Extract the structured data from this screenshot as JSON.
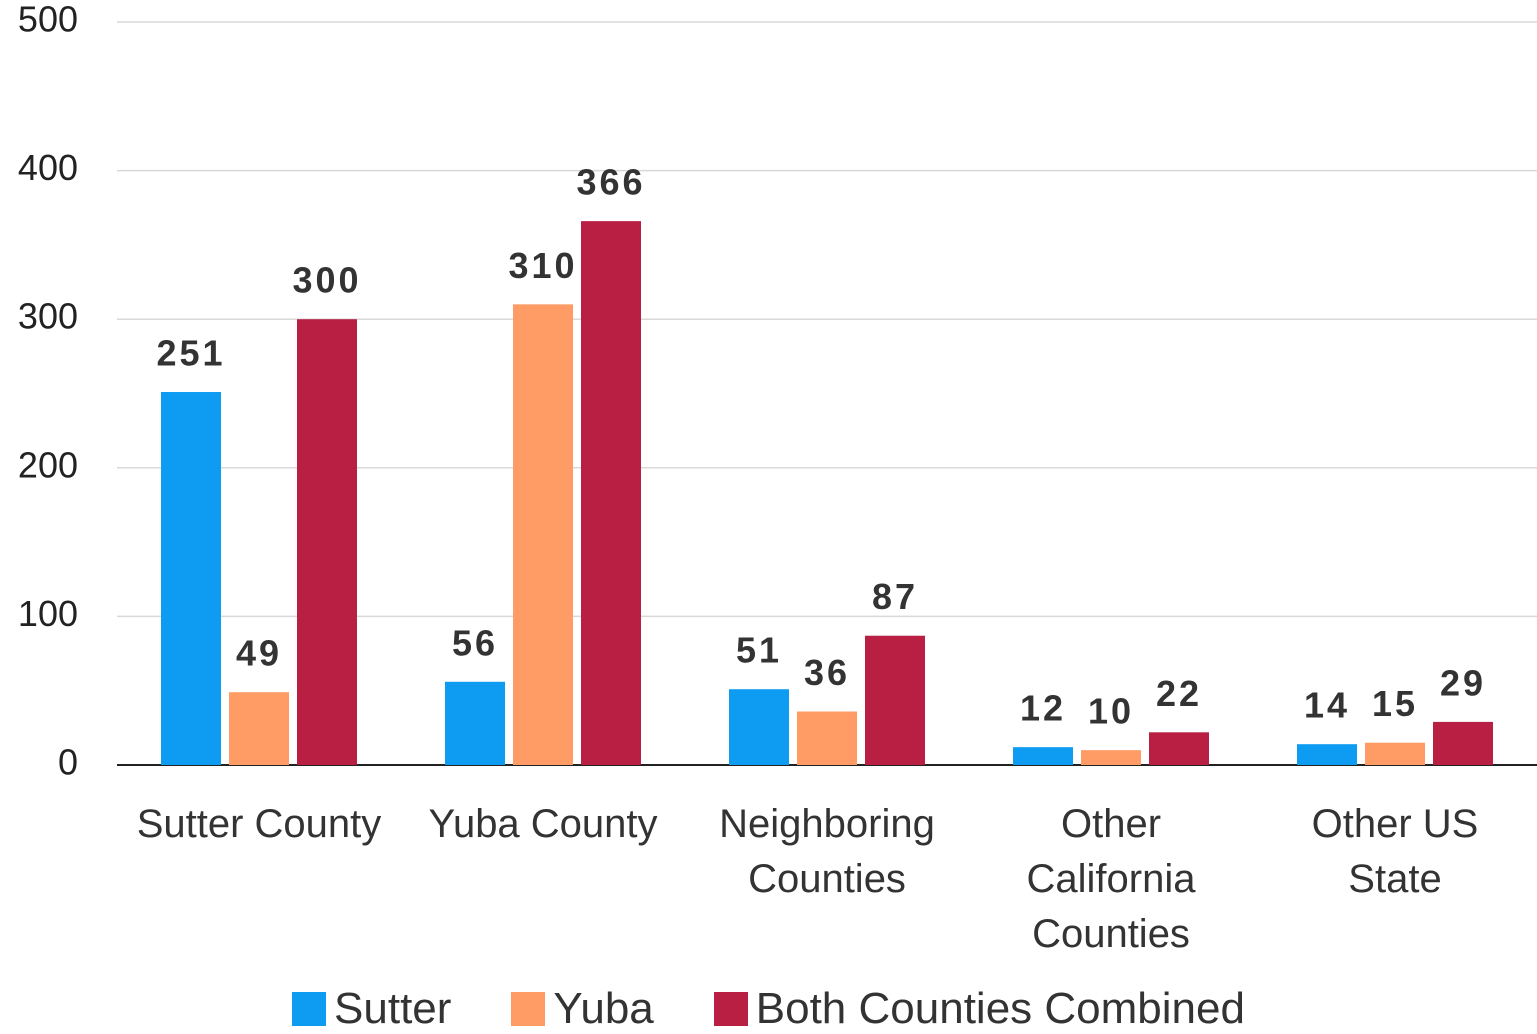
{
  "chart_data": {
    "type": "bar",
    "categories": [
      "Sutter County",
      "Yuba County",
      "Neighboring Counties",
      "Other California Counties",
      "Other US State"
    ],
    "series": [
      {
        "name": "Sutter",
        "color": "#0d9cf2",
        "values": [
          251,
          56,
          51,
          12,
          14
        ]
      },
      {
        "name": "Yuba",
        "color": "#ff9c66",
        "values": [
          49,
          310,
          36,
          10,
          15
        ]
      },
      {
        "name": "Both Counties Combined",
        "color": "#b81f42",
        "values": [
          300,
          366,
          87,
          22,
          29
        ]
      }
    ],
    "ylim": [
      0,
      500
    ],
    "yticks": [
      0,
      100,
      200,
      300,
      400,
      500
    ],
    "grid": true,
    "legend": "bottom"
  }
}
